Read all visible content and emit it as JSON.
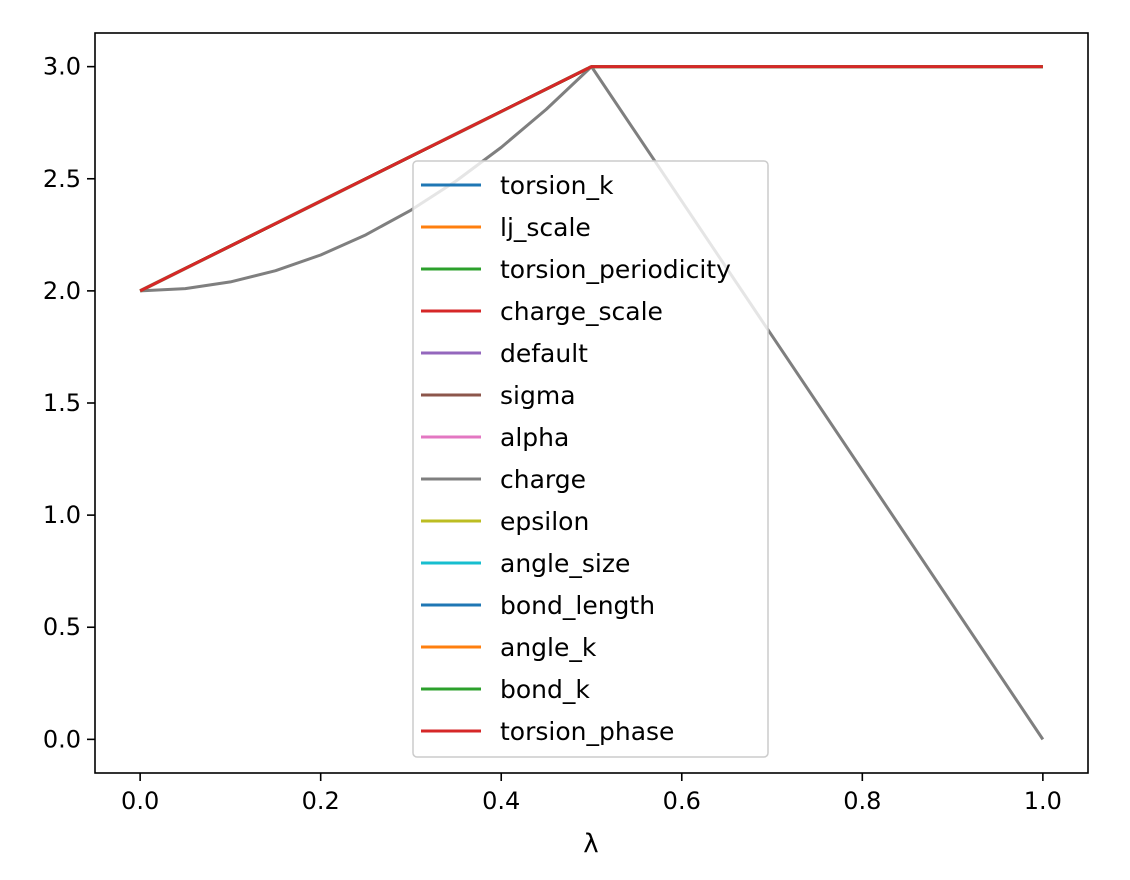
{
  "chart_data": {
    "type": "line",
    "title": "",
    "xlabel": "λ",
    "ylabel": "",
    "xlim": [
      -0.05,
      1.05
    ],
    "ylim": [
      -0.15,
      3.15
    ],
    "xticks": [
      0.0,
      0.2,
      0.4,
      0.6,
      0.8,
      1.0
    ],
    "xtick_labels": [
      "0.0",
      "0.2",
      "0.4",
      "0.6",
      "0.8",
      "1.0"
    ],
    "yticks": [
      0.0,
      0.5,
      1.0,
      1.5,
      2.0,
      2.5,
      3.0
    ],
    "ytick_labels": [
      "0.0",
      "0.5",
      "1.0",
      "1.5",
      "2.0",
      "2.5",
      "3.0"
    ],
    "grid": false,
    "legend_position": "center",
    "series": [
      {
        "name": "torsion_k",
        "color": "#1f77b4",
        "x": [
          0.0,
          0.5,
          1.0
        ],
        "y": [
          2.0,
          3.0,
          3.0
        ]
      },
      {
        "name": "lj_scale",
        "color": "#ff7f0e",
        "x": [
          0.0,
          0.5,
          1.0
        ],
        "y": [
          2.0,
          3.0,
          3.0
        ]
      },
      {
        "name": "torsion_periodicity",
        "color": "#2ca02c",
        "x": [
          0.0,
          0.5,
          1.0
        ],
        "y": [
          2.0,
          3.0,
          3.0
        ]
      },
      {
        "name": "charge_scale",
        "color": "#d62728",
        "x": [
          0.0,
          0.5,
          1.0
        ],
        "y": [
          2.0,
          3.0,
          3.0
        ]
      },
      {
        "name": "default",
        "color": "#9467bd",
        "x": [
          0.0,
          0.5,
          1.0
        ],
        "y": [
          2.0,
          3.0,
          3.0
        ]
      },
      {
        "name": "sigma",
        "color": "#8c564b",
        "x": [
          0.0,
          0.5,
          1.0
        ],
        "y": [
          2.0,
          3.0,
          3.0
        ]
      },
      {
        "name": "alpha",
        "color": "#e377c2",
        "x": [
          0.0,
          0.5,
          1.0
        ],
        "y": [
          2.0,
          3.0,
          3.0
        ]
      },
      {
        "name": "charge",
        "color": "#7f7f7f",
        "x": [
          0.0,
          0.05,
          0.1,
          0.15,
          0.2,
          0.25,
          0.3,
          0.35,
          0.4,
          0.45,
          0.5,
          1.0
        ],
        "y": [
          2.0,
          2.01,
          2.04,
          2.09,
          2.16,
          2.25,
          2.36,
          2.49,
          2.64,
          2.81,
          3.0,
          0.0
        ]
      },
      {
        "name": "epsilon",
        "color": "#bcbd22",
        "x": [
          0.0,
          0.5,
          1.0
        ],
        "y": [
          2.0,
          3.0,
          3.0
        ]
      },
      {
        "name": "angle_size",
        "color": "#17becf",
        "x": [
          0.0,
          0.5,
          1.0
        ],
        "y": [
          2.0,
          3.0,
          3.0
        ]
      },
      {
        "name": "bond_length",
        "color": "#1f77b4",
        "x": [
          0.0,
          0.5,
          1.0
        ],
        "y": [
          2.0,
          3.0,
          3.0
        ]
      },
      {
        "name": "angle_k",
        "color": "#ff7f0e",
        "x": [
          0.0,
          0.5,
          1.0
        ],
        "y": [
          2.0,
          3.0,
          3.0
        ]
      },
      {
        "name": "bond_k",
        "color": "#2ca02c",
        "x": [
          0.0,
          0.5,
          1.0
        ],
        "y": [
          2.0,
          3.0,
          3.0
        ]
      },
      {
        "name": "torsion_phase",
        "color": "#d62728",
        "x": [
          0.0,
          0.5,
          1.0
        ],
        "y": [
          2.0,
          3.0,
          3.0
        ]
      }
    ]
  }
}
